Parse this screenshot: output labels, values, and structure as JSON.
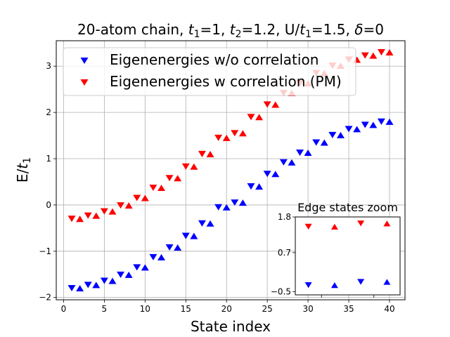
{
  "figure": {
    "title_prefix": "20-atom chain, ",
    "title_t1_var": "t",
    "title_t1_sub": "1",
    "title_part2": "=1, ",
    "title_t2_var": "t",
    "title_t2_sub": "2",
    "title_part3": "=1.2, U/",
    "title_t3_var": "t",
    "title_t3_sub": "1",
    "title_part4": "=1.5, ",
    "title_delta": "δ",
    "title_part5": "=0"
  },
  "chart_data": [
    {
      "type": "scatter",
      "xlabel": "State index",
      "ylabel_prefix": "E/",
      "ylabel_var": "t",
      "ylabel_sub": "1",
      "xlim": [
        -0.9,
        41.9
      ],
      "ylim": [
        -2.05,
        3.55
      ],
      "xticks": [
        0,
        5,
        10,
        15,
        20,
        25,
        30,
        35,
        40
      ],
      "yticks": [
        -2,
        -1,
        0,
        1,
        2,
        3
      ],
      "ytick_labels": [
        "−2",
        "−1",
        "0",
        "1",
        "2",
        "3"
      ],
      "grid": true,
      "legend_position": "top-left",
      "series": [
        {
          "name": "Eigenenergies w/o correlation",
          "color": "#0000ff",
          "marker": "triangle-down",
          "x": [
            1,
            3,
            5,
            7,
            9,
            11,
            13,
            15,
            17,
            19,
            21,
            23,
            25,
            27,
            29,
            31,
            33,
            35,
            37,
            39
          ],
          "y": [
            -1.8,
            -1.73,
            -1.64,
            -1.51,
            -1.35,
            -1.13,
            -0.92,
            -0.67,
            -0.4,
            -0.05,
            0.05,
            0.4,
            0.67,
            0.92,
            1.13,
            1.35,
            1.51,
            1.64,
            1.73,
            1.8
          ]
        },
        {
          "name": "",
          "color": "#0000ff",
          "marker": "triangle-up",
          "x": [
            2,
            4,
            6,
            8,
            10,
            12,
            14,
            16,
            18,
            20,
            22,
            24,
            26,
            28,
            30,
            32,
            34,
            36,
            38,
            40
          ],
          "y": [
            -1.8,
            -1.73,
            -1.64,
            -1.51,
            -1.35,
            -1.13,
            -0.92,
            -0.67,
            -0.4,
            -0.05,
            0.05,
            0.4,
            0.67,
            0.92,
            1.13,
            1.35,
            1.51,
            1.64,
            1.73,
            1.8
          ]
        },
        {
          "name": "Eigenenergies w correlation (PM)",
          "color": "#ff0000",
          "marker": "triangle-down",
          "x": [
            1,
            3,
            5,
            7,
            9,
            11,
            13,
            15,
            17,
            19,
            21,
            23,
            25,
            27,
            29,
            31,
            33,
            35,
            37,
            39
          ],
          "y": [
            -0.3,
            -0.23,
            -0.14,
            -0.01,
            0.15,
            0.37,
            0.58,
            0.83,
            1.1,
            1.45,
            1.55,
            1.9,
            2.17,
            2.42,
            2.63,
            2.85,
            3.01,
            3.14,
            3.23,
            3.3
          ]
        },
        {
          "name": "",
          "color": "#ff0000",
          "marker": "triangle-up",
          "x": [
            2,
            4,
            6,
            8,
            10,
            12,
            14,
            16,
            18,
            20,
            22,
            24,
            26,
            28,
            30,
            32,
            34,
            36,
            38,
            40
          ],
          "y": [
            -0.3,
            -0.23,
            -0.14,
            -0.01,
            0.15,
            0.37,
            0.58,
            0.83,
            1.1,
            1.45,
            1.55,
            1.9,
            2.17,
            2.42,
            2.63,
            2.85,
            3.01,
            3.14,
            3.23,
            3.3
          ]
        }
      ]
    },
    {
      "type": "scatter",
      "title": "Edge states zoom",
      "xlim": [
        0.5,
        4.5
      ],
      "ylim": [
        -0.6,
        1.8
      ],
      "yticks": [
        -0.5,
        0.7,
        1.8
      ],
      "ytick_labels": [
        "−0.5",
        "0.7",
        "1.8"
      ],
      "xticks": [
        1.5,
        3.5
      ],
      "grid": false,
      "series": [
        {
          "name": "",
          "color": "#0000ff",
          "marker": "triangle-down",
          "x": [
            1,
            3
          ],
          "y": [
            -0.3,
            -0.2
          ]
        },
        {
          "name": "",
          "color": "#0000ff",
          "marker": "triangle-up",
          "x": [
            2,
            4
          ],
          "y": [
            -0.3,
            -0.2
          ]
        },
        {
          "name": "",
          "color": "#ff0000",
          "marker": "triangle-down",
          "x": [
            1,
            3
          ],
          "y": [
            1.5,
            1.6
          ]
        },
        {
          "name": "",
          "color": "#ff0000",
          "marker": "triangle-up",
          "x": [
            2,
            4
          ],
          "y": [
            1.5,
            1.6
          ]
        }
      ]
    }
  ]
}
